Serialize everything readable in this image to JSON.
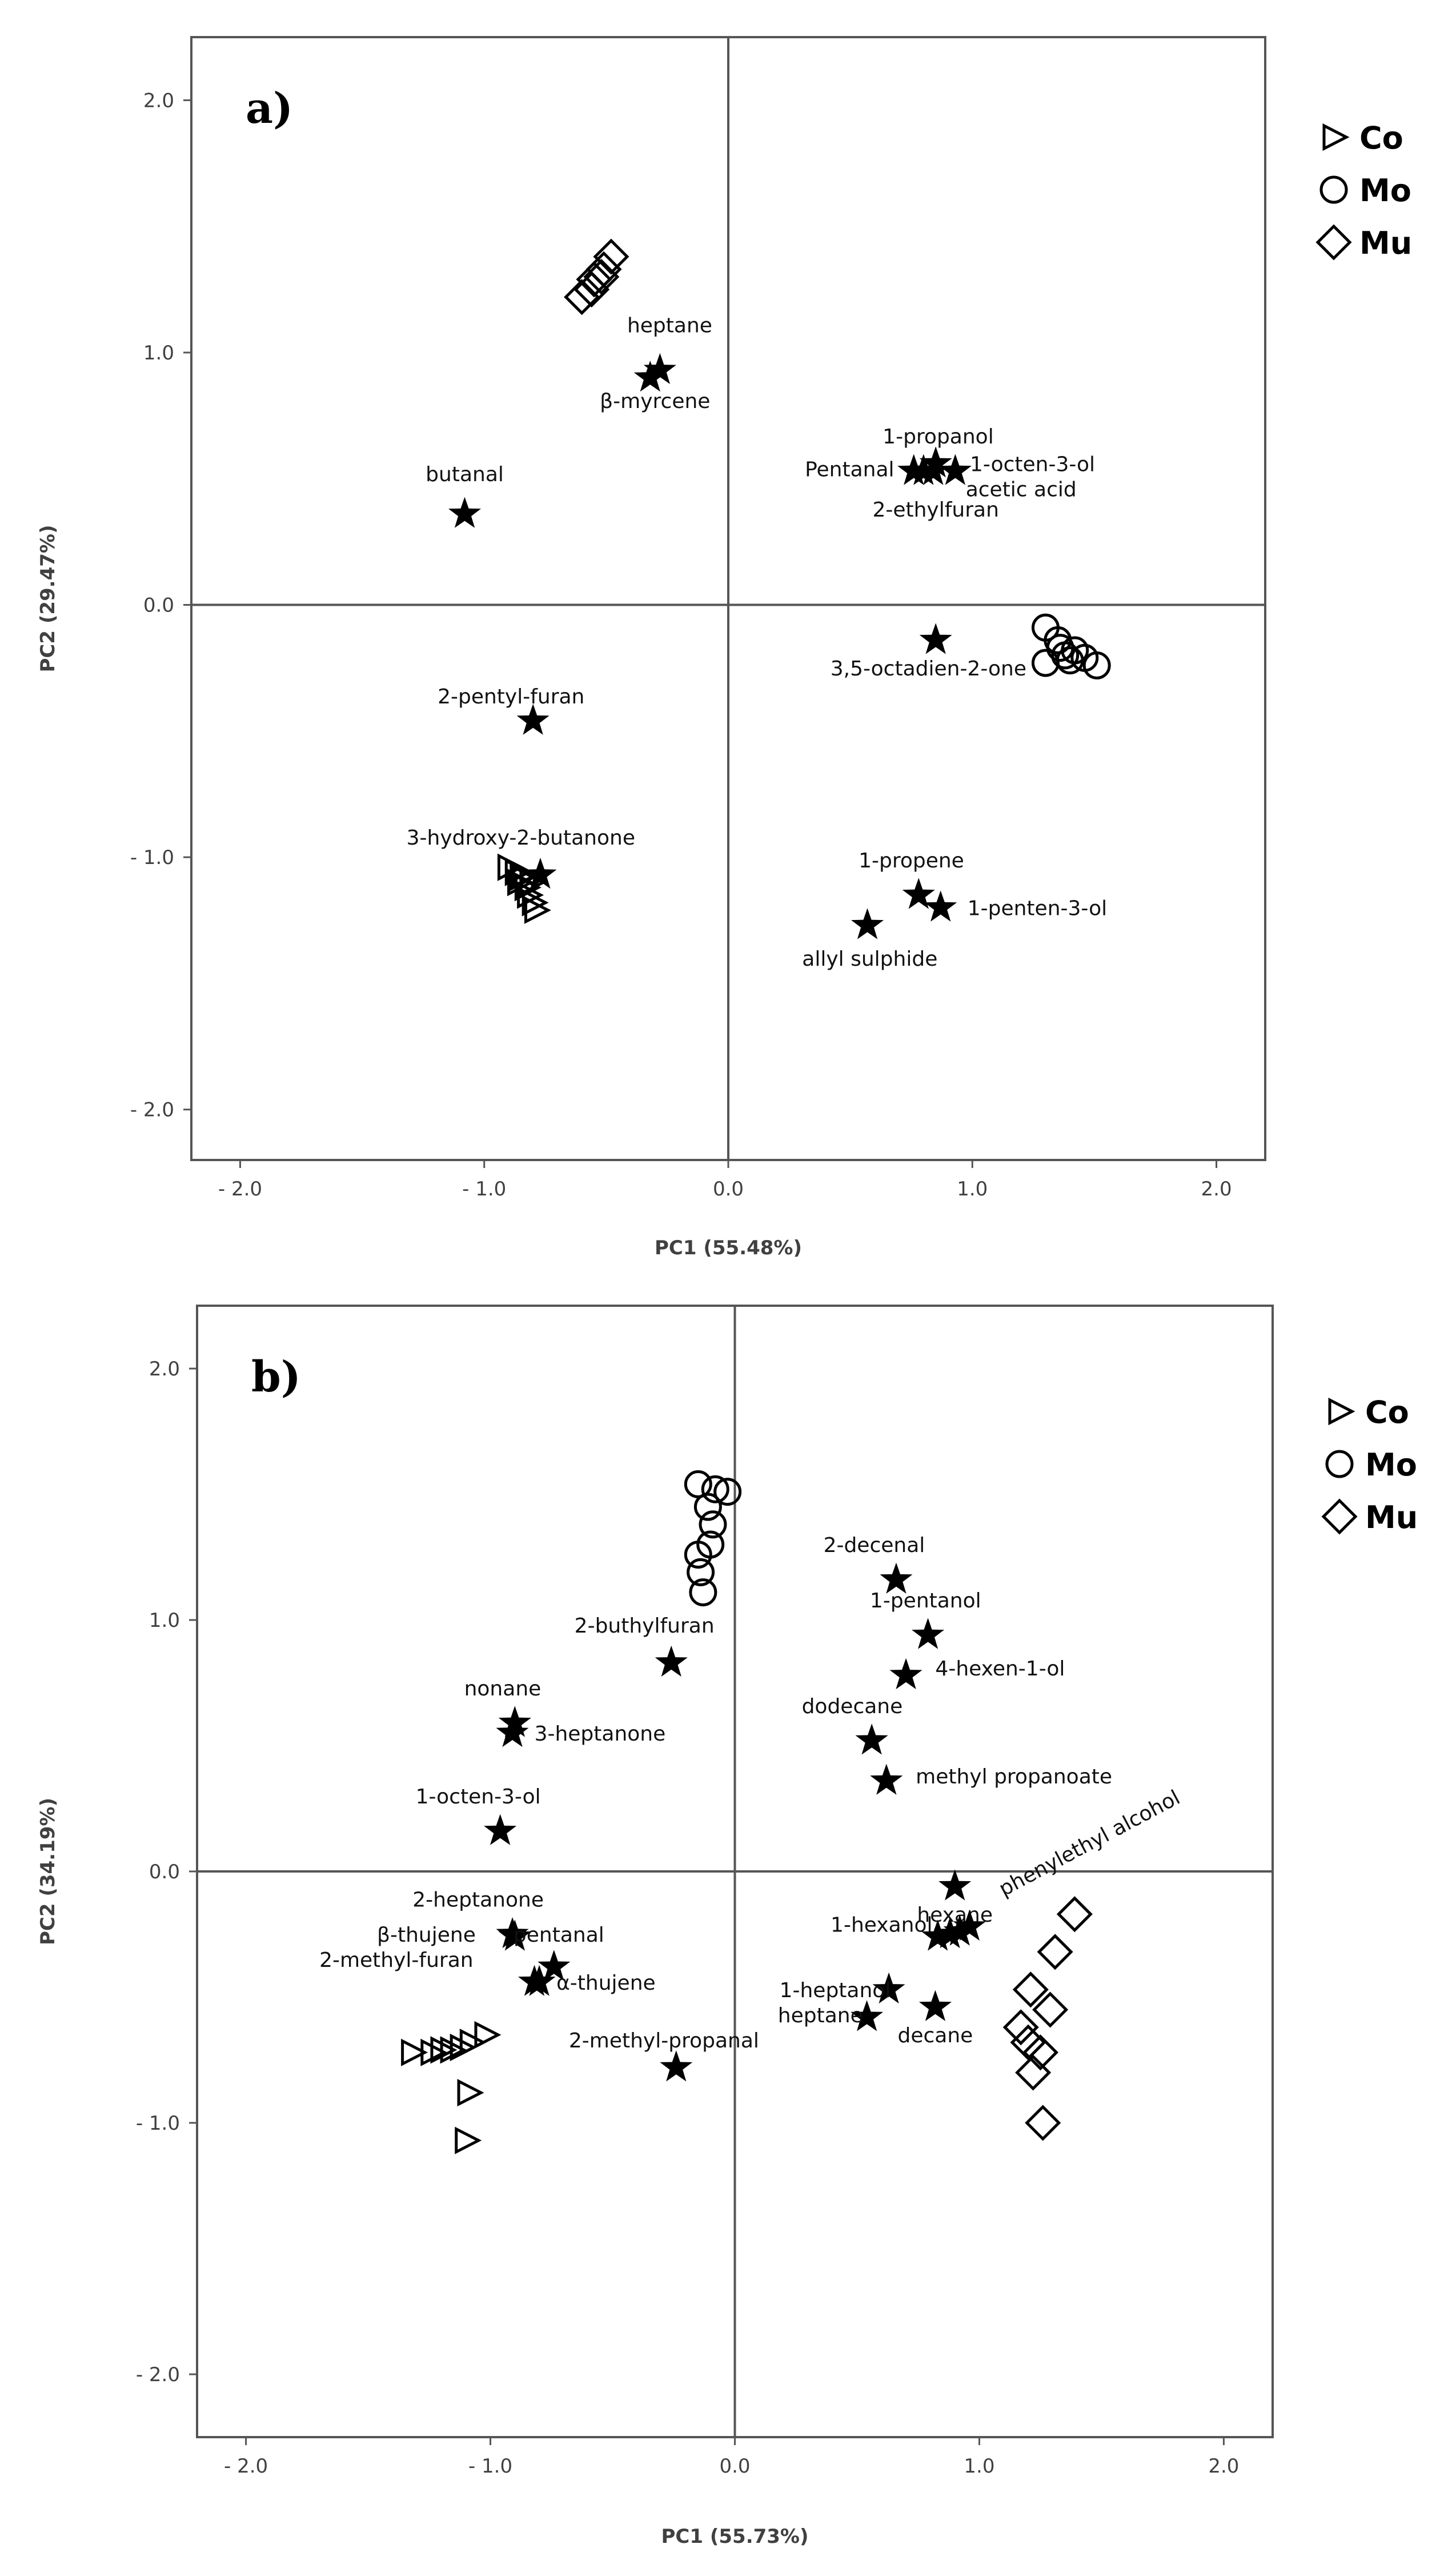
{
  "colors": {
    "frame": "#555555",
    "axis_zero": "#555555",
    "marker": "#000000",
    "text": "#111111"
  },
  "chart_data": [
    {
      "type": "scatter",
      "panel_label": "a)",
      "xlabel": "PC1 (55.48%)",
      "ylabel": "PC2 (29.47%)",
      "xlim": [
        -2.2,
        2.2
      ],
      "ylim": [
        -2.2,
        2.25
      ],
      "xticks": [
        -2.0,
        -1.0,
        0.0,
        1.0,
        2.0
      ],
      "yticks": [
        2.0,
        1.0,
        0.0,
        -1.0,
        -2.0
      ],
      "xtick_labels": [
        "- 2.0",
        "- 1.0",
        "0.0",
        "1.0",
        "2.0"
      ],
      "ytick_labels": [
        "2.0",
        "1.0",
        "0.0",
        "- 1.0",
        "- 2.0"
      ],
      "grid": false,
      "legend_position": "top-right",
      "legend": [
        {
          "name": "Co",
          "marker": "triangle"
        },
        {
          "name": "Mo",
          "marker": "circle"
        },
        {
          "name": "Mu",
          "marker": "diamond"
        }
      ],
      "sample_series": [
        {
          "name": "Co",
          "marker": "triangle",
          "points": [
            [
              -0.9,
              -1.04
            ],
            [
              -0.87,
              -1.06
            ],
            [
              -0.85,
              -1.08
            ],
            [
              -0.86,
              -1.1
            ],
            [
              -0.83,
              -1.12
            ],
            [
              -0.82,
              -1.15
            ],
            [
              -0.8,
              -1.18
            ],
            [
              -0.79,
              -1.21
            ],
            [
              -0.84,
              -1.07
            ],
            [
              -0.81,
              -1.1
            ]
          ]
        },
        {
          "name": "Mo",
          "marker": "circle",
          "points": [
            [
              1.3,
              -0.09
            ],
            [
              1.35,
              -0.14
            ],
            [
              1.3,
              -0.23
            ],
            [
              1.38,
              -0.2
            ],
            [
              1.42,
              -0.18
            ],
            [
              1.46,
              -0.21
            ],
            [
              1.51,
              -0.24
            ],
            [
              1.4,
              -0.22
            ],
            [
              1.36,
              -0.17
            ]
          ]
        },
        {
          "name": "Mu",
          "marker": "diamond",
          "points": [
            [
              -0.48,
              1.38
            ],
            [
              -0.51,
              1.33
            ],
            [
              -0.55,
              1.29
            ],
            [
              -0.56,
              1.25
            ],
            [
              -0.6,
              1.22
            ],
            [
              -0.52,
              1.3
            ]
          ]
        }
      ],
      "loadings": [
        {
          "label": "heptane",
          "x": -0.28,
          "y": 0.93,
          "lx": -0.24,
          "ly": 1.08,
          "anchor": "middle"
        },
        {
          "label": "β-myrcene",
          "x": -0.32,
          "y": 0.9,
          "lx": -0.3,
          "ly": 0.78,
          "anchor": "middle"
        },
        {
          "label": "butanal",
          "x": -1.08,
          "y": 0.36,
          "lx": -1.08,
          "ly": 0.49,
          "anchor": "middle"
        },
        {
          "label": "1-propanol",
          "x": 0.85,
          "y": 0.56,
          "lx": 0.86,
          "ly": 0.64,
          "anchor": "middle"
        },
        {
          "label": "Pentanal",
          "x": 0.76,
          "y": 0.53,
          "lx": 0.68,
          "ly": 0.51,
          "anchor": "end"
        },
        {
          "label": "1-octen-3-ol",
          "x": 0.93,
          "y": 0.53,
          "lx": 0.99,
          "ly": 0.53,
          "anchor": "start"
        },
        {
          "label": "acetic acid",
          "x": 0.84,
          "y": 0.53,
          "lx": 1.2,
          "ly": 0.43,
          "anchor": "middle"
        },
        {
          "label": "2-ethylfuran",
          "x": 0.8,
          "y": 0.53,
          "lx": 0.85,
          "ly": 0.35,
          "anchor": "middle"
        },
        {
          "label": "3,5-octadien-2-one",
          "x": 0.85,
          "y": -0.14,
          "lx": 0.82,
          "ly": -0.28,
          "anchor": "middle"
        },
        {
          "label": "2-pentyl-furan",
          "x": -0.8,
          "y": -0.46,
          "lx": -0.89,
          "ly": -0.39,
          "anchor": "middle"
        },
        {
          "label": "3-hydroxy-2-butanone",
          "x": -0.77,
          "y": -1.07,
          "lx": -0.85,
          "ly": -0.95,
          "anchor": "middle"
        },
        {
          "label": "1-propene",
          "x": 0.78,
          "y": -1.15,
          "lx": 0.75,
          "ly": -1.04,
          "anchor": "middle"
        },
        {
          "label": "1-penten-3-ol",
          "x": 0.87,
          "y": -1.2,
          "lx": 0.98,
          "ly": -1.23,
          "anchor": "start"
        },
        {
          "label": "allyl sulphide",
          "x": 0.57,
          "y": -1.27,
          "lx": 0.58,
          "ly": -1.43,
          "anchor": "middle"
        }
      ]
    },
    {
      "type": "scatter",
      "panel_label": "b)",
      "xlabel": "PC1 (55.73%)",
      "ylabel": "PC2 (34.19%)",
      "xlim": [
        -2.2,
        2.2
      ],
      "ylim": [
        -2.25,
        2.25
      ],
      "xticks": [
        -2.0,
        -1.0,
        0.0,
        1.0,
        2.0
      ],
      "yticks": [
        2.0,
        1.0,
        0.0,
        -1.0,
        -2.0
      ],
      "xtick_labels": [
        "- 2.0",
        "- 1.0",
        "0.0",
        "1.0",
        "2.0"
      ],
      "ytick_labels": [
        "2.0",
        "1.0",
        "0.0",
        "- 1.0",
        "- 2.0"
      ],
      "grid": false,
      "legend_position": "top-right",
      "legend": [
        {
          "name": "Co",
          "marker": "triangle"
        },
        {
          "name": "Mo",
          "marker": "circle"
        },
        {
          "name": "Mu",
          "marker": "diamond"
        }
      ],
      "sample_series": [
        {
          "name": "Co",
          "marker": "triangle",
          "points": [
            [
              -1.32,
              -0.72
            ],
            [
              -1.24,
              -0.72
            ],
            [
              -1.2,
              -0.71
            ],
            [
              -1.16,
              -0.71
            ],
            [
              -1.12,
              -0.7
            ],
            [
              -1.08,
              -0.68
            ],
            [
              -1.02,
              -0.65
            ],
            [
              -1.09,
              -0.88
            ],
            [
              -1.1,
              -1.07
            ]
          ]
        },
        {
          "name": "Mo",
          "marker": "circle",
          "points": [
            [
              -0.15,
              1.54
            ],
            [
              -0.08,
              1.52
            ],
            [
              -0.03,
              1.51
            ],
            [
              -0.11,
              1.45
            ],
            [
              -0.09,
              1.38
            ],
            [
              -0.1,
              1.3
            ],
            [
              -0.15,
              1.26
            ],
            [
              -0.14,
              1.19
            ],
            [
              -0.13,
              1.11
            ]
          ]
        },
        {
          "name": "Mu",
          "marker": "diamond",
          "points": [
            [
              1.39,
              -0.17
            ],
            [
              1.31,
              -0.32
            ],
            [
              1.21,
              -0.47
            ],
            [
              1.29,
              -0.55
            ],
            [
              1.17,
              -0.62
            ],
            [
              1.2,
              -0.68
            ],
            [
              1.25,
              -0.72
            ],
            [
              1.22,
              -0.8
            ],
            [
              1.26,
              -1.0
            ]
          ]
        }
      ],
      "loadings": [
        {
          "label": "2-decenal",
          "x": 0.66,
          "y": 1.16,
          "lx": 0.57,
          "ly": 1.27,
          "anchor": "middle"
        },
        {
          "label": "1-pentanol",
          "x": 0.79,
          "y": 0.94,
          "lx": 0.78,
          "ly": 1.05,
          "anchor": "middle"
        },
        {
          "label": "4-hexen-1-ol",
          "x": 0.7,
          "y": 0.78,
          "lx": 0.82,
          "ly": 0.78,
          "anchor": "start"
        },
        {
          "label": "dodecane",
          "x": 0.56,
          "y": 0.52,
          "lx": 0.48,
          "ly": 0.63,
          "anchor": "middle"
        },
        {
          "label": "methyl propanoate",
          "x": 0.62,
          "y": 0.36,
          "lx": 0.74,
          "ly": 0.35,
          "anchor": "start"
        },
        {
          "label": "2-buthylfuran",
          "x": -0.26,
          "y": 0.83,
          "lx": -0.37,
          "ly": 0.95,
          "anchor": "middle"
        },
        {
          "label": "nonane",
          "x": -0.9,
          "y": 0.59,
          "lx": -0.95,
          "ly": 0.7,
          "anchor": "middle"
        },
        {
          "label": "3-heptanone",
          "x": -0.91,
          "y": 0.55,
          "lx": -0.82,
          "ly": 0.52,
          "anchor": "start"
        },
        {
          "label": "1-octen-3-ol",
          "x": -0.96,
          "y": 0.16,
          "lx": -1.05,
          "ly": 0.27,
          "anchor": "middle"
        },
        {
          "label": "2-heptanone",
          "x": -0.91,
          "y": -0.25,
          "lx": -1.05,
          "ly": -0.14,
          "anchor": "middle"
        },
        {
          "label": "β-thujene",
          "x": -0.9,
          "y": -0.26,
          "lx": -1.06,
          "ly": -0.28,
          "anchor": "end"
        },
        {
          "label": "2-methyl-furan",
          "x": -0.82,
          "y": -0.44,
          "lx": -1.07,
          "ly": -0.38,
          "anchor": "end"
        },
        {
          "label": "pentanal",
          "x": -0.74,
          "y": -0.38,
          "lx": -0.72,
          "ly": -0.28,
          "anchor": "middle"
        },
        {
          "label": "α-thujene",
          "x": -0.8,
          "y": -0.44,
          "lx": -0.73,
          "ly": -0.47,
          "anchor": "start"
        },
        {
          "label": "2-methyl-propanal",
          "x": -0.24,
          "y": -0.78,
          "lx": -0.29,
          "ly": -0.7,
          "anchor": "middle"
        },
        {
          "label": "hexane",
          "x": 0.9,
          "y": -0.06,
          "lx": 0.9,
          "ly": -0.2,
          "anchor": "middle"
        },
        {
          "label": "1-hexanol",
          "x": 0.83,
          "y": -0.26,
          "lx": 0.6,
          "ly": -0.24,
          "anchor": "middle"
        },
        {
          "label": "1-heptanol",
          "x": 0.63,
          "y": -0.47,
          "lx": 0.41,
          "ly": -0.5,
          "anchor": "middle"
        },
        {
          "label": "heptane",
          "x": 0.54,
          "y": -0.58,
          "lx": 0.35,
          "ly": -0.6,
          "anchor": "middle"
        },
        {
          "label": "decane",
          "x": 0.82,
          "y": -0.54,
          "lx": 0.82,
          "ly": -0.68,
          "anchor": "middle"
        },
        {
          "label": "phenylethyl alcohol",
          "x": 0.96,
          "y": -0.22,
          "lx": 1.1,
          "ly": -0.1,
          "anchor": "start",
          "rotate": -28
        }
      ],
      "extra_markers": [
        [
          0.88,
          -0.25
        ],
        [
          0.92,
          -0.24
        ]
      ]
    }
  ]
}
